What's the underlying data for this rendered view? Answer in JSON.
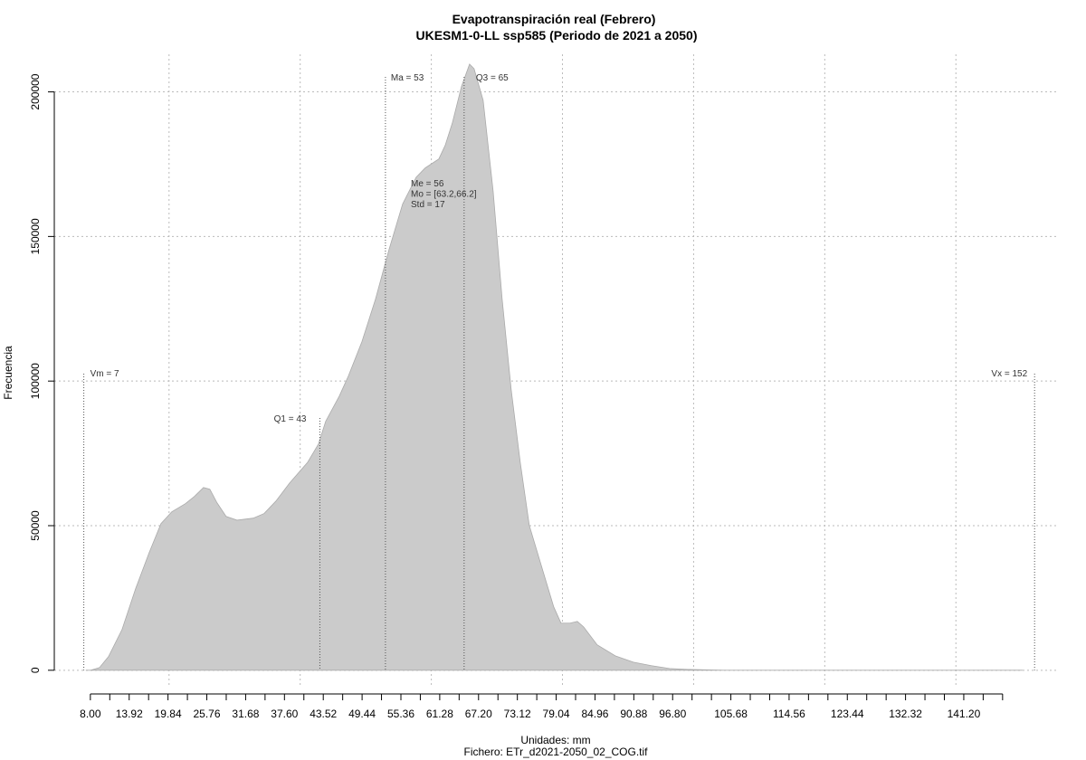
{
  "chart_data": {
    "type": "area",
    "title": "Evapotranspiración real (Febrero)",
    "subtitle": "UKESM1-0-LL ssp585 (Periodo de 2021 a 2050)",
    "ylabel": "Frecuencia",
    "xlabel": "Unidades: mm",
    "caption": "Fichero: ETr_d2021-2050_02_COG.tif",
    "color": "#cbcbcb",
    "grid": true,
    "x": [
      7.3,
      8,
      9.38,
      10.76,
      12.83,
      14.9,
      16.97,
      18.77,
      20.42,
      22.49,
      23.87,
      25.25,
      26.22,
      27.32,
      28.7,
      30.36,
      32.84,
      34.5,
      36.3,
      38.37,
      41.13,
      42.78,
      43.89,
      45.96,
      47.34,
      49.41,
      51.48,
      53.55,
      55.62,
      57.69,
      59.07,
      61.14,
      62.11,
      63.21,
      64.59,
      65.83,
      66.52,
      67.9,
      69.42,
      70.8,
      72.18,
      73.56,
      74.94,
      77.01,
      78.67,
      79.77,
      81.15,
      82.26,
      83.22,
      85.29,
      88.05,
      90.81,
      93.57,
      96.34,
      99.1,
      104.62,
      118.42,
      150.17
    ],
    "values": [
      0,
      0,
      900,
      4700,
      14100,
      28200,
      40700,
      50700,
      54800,
      57600,
      60100,
      63200,
      62600,
      57900,
      53200,
      51900,
      52600,
      54200,
      58500,
      64700,
      71900,
      78200,
      86100,
      94800,
      101700,
      113600,
      128300,
      145500,
      161200,
      170500,
      173700,
      176800,
      181500,
      189300,
      201800,
      209600,
      208000,
      197100,
      165800,
      128300,
      97000,
      71900,
      50100,
      34400,
      21900,
      16300,
      16300,
      16900,
      15000,
      8800,
      5000,
      2800,
      1600,
      600,
      300,
      0,
      0,
      0
    ],
    "xlim": [
      2.5,
      155.7
    ],
    "ylim": [
      -6000,
      213000
    ],
    "yticks": [
      0,
      50000,
      100000,
      150000,
      200000
    ],
    "xticks": [
      {
        "value": 8,
        "label": "8.00"
      },
      {
        "value": 13.92,
        "label": "13.92"
      },
      {
        "value": 19.84,
        "label": "19.84"
      },
      {
        "value": 25.76,
        "label": "25.76"
      },
      {
        "value": 31.68,
        "label": "31.68"
      },
      {
        "value": 37.6,
        "label": "37.60"
      },
      {
        "value": 43.52,
        "label": "43.52"
      },
      {
        "value": 49.44,
        "label": "49.44"
      },
      {
        "value": 55.36,
        "label": "55.36"
      },
      {
        "value": 61.28,
        "label": "61.28"
      },
      {
        "value": 67.2,
        "label": "67.20"
      },
      {
        "value": 73.12,
        "label": "73.12"
      },
      {
        "value": 79.04,
        "label": "79.04"
      },
      {
        "value": 84.96,
        "label": "84.96"
      },
      {
        "value": 90.88,
        "label": "90.88"
      },
      {
        "value": 96.8,
        "label": "96.80"
      },
      {
        "value": 105.68,
        "label": "105.68"
      },
      {
        "value": 114.56,
        "label": "114.56"
      },
      {
        "value": 123.44,
        "label": "123.44"
      },
      {
        "value": 132.32,
        "label": "132.32"
      },
      {
        "value": 141.2,
        "label": "141.20"
      }
    ],
    "xminorticks": [
      10.96,
      16.88,
      22.8,
      28.72,
      34.64,
      40.56,
      46.48,
      52.4,
      58.32,
      64.24,
      70.16,
      76.08,
      82,
      87.92,
      93.84,
      99.76,
      102.72,
      108.64,
      111.6,
      117.52,
      120.48,
      126.4,
      129.36,
      135.28,
      138.24,
      144.16,
      147.12
    ],
    "xgrid": [
      20,
      40,
      60,
      80,
      100,
      120,
      140
    ],
    "annotations": [
      {
        "label": "Vm = 7",
        "x": 7
      },
      {
        "label": "Q1 = 43",
        "x": 43
      },
      {
        "label": "Ma = 53",
        "x": 53
      },
      {
        "label": "Q3 = 65",
        "x": 65
      },
      {
        "label": "Vx = 152",
        "x": 152
      }
    ],
    "stats": [
      "Me = 56",
      "Mo = [63.2,66.2]",
      "Std = 17"
    ]
  }
}
